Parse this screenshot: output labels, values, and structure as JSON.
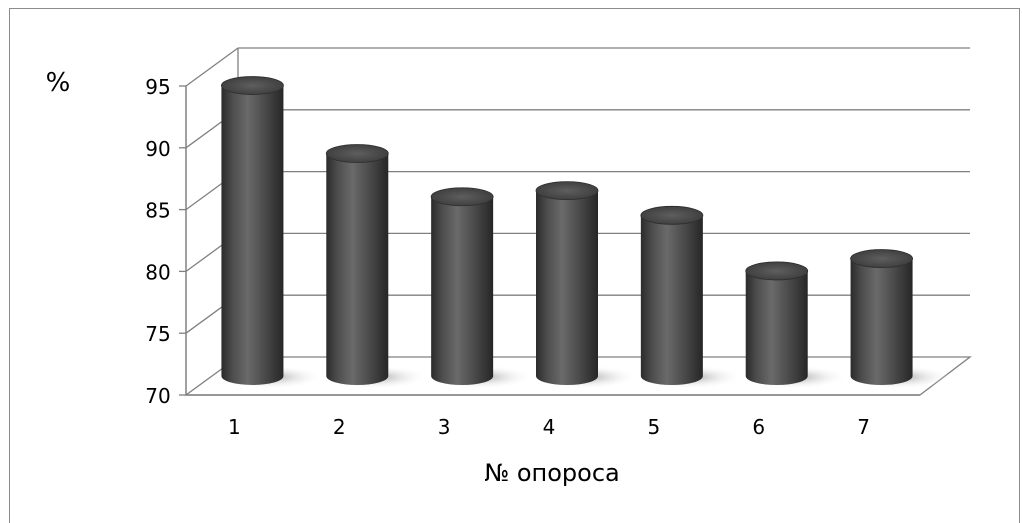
{
  "chart_data": {
    "type": "bar",
    "categories": [
      "1",
      "2",
      "3",
      "4",
      "5",
      "6",
      "7"
    ],
    "values": [
      93.5,
      88,
      84.5,
      85,
      83,
      78.5,
      79.5
    ],
    "xlabel": "№ опороса",
    "ylabel": "%",
    "ylim": [
      70,
      95
    ],
    "yticks": [
      "70",
      "75",
      "80",
      "85",
      "90",
      "95"
    ],
    "grid": true,
    "style": "3d-cylinder",
    "colors": {
      "bar": "#4a4a4a",
      "grid": "#808080",
      "text": "#000000"
    }
  }
}
